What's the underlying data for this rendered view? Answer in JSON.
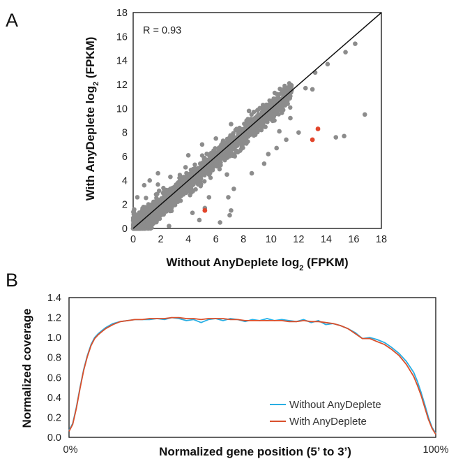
{
  "figure": {
    "panel_a_letter": "A",
    "panel_b_letter": "B"
  },
  "chart_data": [
    {
      "type": "scatter",
      "panel": "A",
      "xlabel": "Without AnyDeplete log",
      "xlabel_sub": "2",
      "xlabel_tail": " (FPKM)",
      "ylabel": "With AnyDeplete log",
      "ylabel_sub": "2",
      "ylabel_tail": " (FPKM)",
      "xlim": [
        0,
        18
      ],
      "ylim": [
        0,
        18
      ],
      "xticks": [
        "0",
        "2",
        "4",
        "6",
        "8",
        "10",
        "12",
        "14",
        "16",
        "18"
      ],
      "yticks": [
        "0",
        "2",
        "4",
        "6",
        "8",
        "10",
        "12",
        "14",
        "16",
        "18"
      ],
      "annotation": "R = 0.93",
      "fit_line": [
        [
          0,
          0
        ],
        [
          18,
          18
        ]
      ],
      "colors": {
        "points": "#8c8c8c",
        "highlight": "#e2452b",
        "line": "#111111"
      },
      "outliers": [
        {
          "x": 16.1,
          "y": 15.4
        },
        {
          "x": 15.4,
          "y": 14.7
        },
        {
          "x": 14.1,
          "y": 13.7
        },
        {
          "x": 16.8,
          "y": 9.5
        },
        {
          "x": 15.3,
          "y": 7.7
        },
        {
          "x": 14.7,
          "y": 7.6
        },
        {
          "x": 13.2,
          "y": 13.0
        },
        {
          "x": 12.5,
          "y": 11.7
        },
        {
          "x": 11.4,
          "y": 9.2
        },
        {
          "x": 10.6,
          "y": 8.1
        },
        {
          "x": 10.4,
          "y": 6.7
        },
        {
          "x": 8.6,
          "y": 4.6
        },
        {
          "x": 7.3,
          "y": 3.3
        },
        {
          "x": 7.1,
          "y": 1.5
        },
        {
          "x": 7.0,
          "y": 1.1
        },
        {
          "x": 6.9,
          "y": 2.6
        },
        {
          "x": 6.8,
          "y": 4.5
        },
        {
          "x": 7.1,
          "y": 8.7
        },
        {
          "x": 7.4,
          "y": 7.5
        },
        {
          "x": 6.3,
          "y": 0.5
        },
        {
          "x": 5.5,
          "y": 2.6
        },
        {
          "x": 5.2,
          "y": 1.7
        },
        {
          "x": 4.8,
          "y": 0.7
        },
        {
          "x": 4.3,
          "y": 1.3
        },
        {
          "x": 3.8,
          "y": 5.1
        },
        {
          "x": 4.0,
          "y": 6.1
        },
        {
          "x": 2.7,
          "y": 4.3
        },
        {
          "x": 1.8,
          "y": 4.6
        },
        {
          "x": 1.2,
          "y": 4.0
        },
        {
          "x": 0.8,
          "y": 3.6
        },
        {
          "x": 0.3,
          "y": 2.6
        },
        {
          "x": 2.6,
          "y": 0.2
        },
        {
          "x": 9.8,
          "y": 6.2
        },
        {
          "x": 11.1,
          "y": 7.4
        },
        {
          "x": 12.0,
          "y": 8.0
        },
        {
          "x": 9.5,
          "y": 5.4
        },
        {
          "x": 13.0,
          "y": 11.6
        },
        {
          "x": 8.4,
          "y": 9.8
        },
        {
          "x": 5.0,
          "y": 7.0
        },
        {
          "x": 6.0,
          "y": 7.5
        }
      ],
      "highlighted": [
        {
          "x": 13.4,
          "y": 8.3
        },
        {
          "x": 13.0,
          "y": 7.4
        },
        {
          "x": 5.2,
          "y": 1.5
        }
      ]
    },
    {
      "type": "line",
      "panel": "B",
      "xlabel": "Normalized gene position (5’ to 3’)",
      "ylabel": "Normalized coverage",
      "x_start_label": "0%",
      "x_end_label": "100%",
      "xlim": [
        0,
        100
      ],
      "ylim": [
        0,
        1.4
      ],
      "yticks": [
        "0.0",
        "0.2",
        "0.4",
        "0.6",
        "0.8",
        "1.0",
        "1.2",
        "1.4"
      ],
      "legend_position": "bottom-right",
      "series": [
        {
          "name": "Without AnyDeplete",
          "color": "#29aee3",
          "points": [
            [
              0,
              0.07
            ],
            [
              1,
              0.14
            ],
            [
              2,
              0.3
            ],
            [
              3,
              0.5
            ],
            [
              4,
              0.68
            ],
            [
              5,
              0.82
            ],
            [
              6,
              0.93
            ],
            [
              7,
              1.0
            ],
            [
              8,
              1.04
            ],
            [
              9,
              1.07
            ],
            [
              10,
              1.1
            ],
            [
              12,
              1.14
            ],
            [
              14,
              1.16
            ],
            [
              16,
              1.17
            ],
            [
              18,
              1.18
            ],
            [
              20,
              1.18
            ],
            [
              22,
              1.18
            ],
            [
              24,
              1.19
            ],
            [
              26,
              1.18
            ],
            [
              28,
              1.2
            ],
            [
              30,
              1.19
            ],
            [
              32,
              1.17
            ],
            [
              34,
              1.18
            ],
            [
              36,
              1.15
            ],
            [
              38,
              1.18
            ],
            [
              40,
              1.19
            ],
            [
              42,
              1.17
            ],
            [
              44,
              1.19
            ],
            [
              46,
              1.18
            ],
            [
              48,
              1.16
            ],
            [
              50,
              1.18
            ],
            [
              52,
              1.17
            ],
            [
              54,
              1.19
            ],
            [
              56,
              1.17
            ],
            [
              58,
              1.18
            ],
            [
              60,
              1.17
            ],
            [
              62,
              1.16
            ],
            [
              64,
              1.18
            ],
            [
              66,
              1.15
            ],
            [
              68,
              1.17
            ],
            [
              70,
              1.13
            ],
            [
              72,
              1.14
            ],
            [
              74,
              1.12
            ],
            [
              76,
              1.09
            ],
            [
              78,
              1.05
            ],
            [
              80,
              0.99
            ],
            [
              82,
              1.0
            ],
            [
              84,
              0.98
            ],
            [
              86,
              0.95
            ],
            [
              88,
              0.9
            ],
            [
              90,
              0.84
            ],
            [
              92,
              0.76
            ],
            [
              94,
              0.65
            ],
            [
              95,
              0.56
            ],
            [
              96,
              0.45
            ],
            [
              97,
              0.33
            ],
            [
              98,
              0.2
            ],
            [
              99,
              0.1
            ],
            [
              100,
              0.04
            ]
          ]
        },
        {
          "name": "With AnyDeplete",
          "color": "#d9502c",
          "points": [
            [
              0,
              0.06
            ],
            [
              1,
              0.13
            ],
            [
              2,
              0.29
            ],
            [
              3,
              0.49
            ],
            [
              4,
              0.67
            ],
            [
              5,
              0.81
            ],
            [
              6,
              0.92
            ],
            [
              7,
              0.99
            ],
            [
              8,
              1.03
            ],
            [
              9,
              1.06
            ],
            [
              10,
              1.09
            ],
            [
              12,
              1.13
            ],
            [
              14,
              1.16
            ],
            [
              16,
              1.17
            ],
            [
              18,
              1.18
            ],
            [
              20,
              1.18
            ],
            [
              22,
              1.19
            ],
            [
              24,
              1.19
            ],
            [
              26,
              1.19
            ],
            [
              28,
              1.2
            ],
            [
              30,
              1.2
            ],
            [
              32,
              1.19
            ],
            [
              34,
              1.19
            ],
            [
              36,
              1.18
            ],
            [
              38,
              1.19
            ],
            [
              40,
              1.19
            ],
            [
              42,
              1.19
            ],
            [
              44,
              1.18
            ],
            [
              46,
              1.18
            ],
            [
              48,
              1.17
            ],
            [
              50,
              1.17
            ],
            [
              52,
              1.17
            ],
            [
              54,
              1.17
            ],
            [
              56,
              1.17
            ],
            [
              58,
              1.17
            ],
            [
              60,
              1.16
            ],
            [
              62,
              1.16
            ],
            [
              64,
              1.17
            ],
            [
              66,
              1.16
            ],
            [
              68,
              1.16
            ],
            [
              70,
              1.15
            ],
            [
              72,
              1.14
            ],
            [
              74,
              1.12
            ],
            [
              76,
              1.09
            ],
            [
              78,
              1.04
            ],
            [
              80,
              0.99
            ],
            [
              82,
              0.99
            ],
            [
              84,
              0.96
            ],
            [
              86,
              0.93
            ],
            [
              88,
              0.88
            ],
            [
              90,
              0.82
            ],
            [
              92,
              0.73
            ],
            [
              94,
              0.61
            ],
            [
              95,
              0.52
            ],
            [
              96,
              0.42
            ],
            [
              97,
              0.3
            ],
            [
              98,
              0.18
            ],
            [
              99,
              0.09
            ],
            [
              100,
              0.03
            ]
          ]
        }
      ]
    }
  ]
}
